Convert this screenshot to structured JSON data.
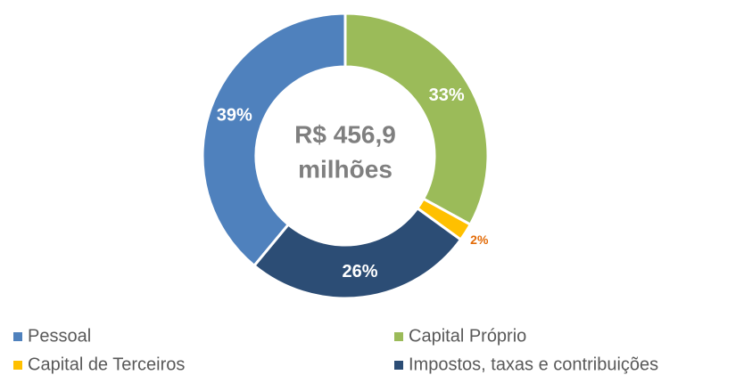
{
  "chart_data": {
    "type": "donut",
    "center_lines": [
      "R$ 456,9",
      "milhões"
    ],
    "series": [
      {
        "name": "Pessoal",
        "color": "#4f81bd",
        "value": 39,
        "value_label": "39%",
        "label_color": "#ffffff"
      },
      {
        "name": "Capital Próprio",
        "color": "#9bbb59",
        "value": 33,
        "value_label": "33%",
        "label_color": "#ffffff"
      },
      {
        "name": "Capital de Terceiros",
        "color": "#ffc000",
        "value": 2,
        "value_label": "2%",
        "label_color": "#e36c09"
      },
      {
        "name": "Impostos, taxas e contribuições",
        "color": "#2c4d75",
        "value": 26,
        "value_label": "26%",
        "label_color": "#ffffff"
      }
    ]
  }
}
